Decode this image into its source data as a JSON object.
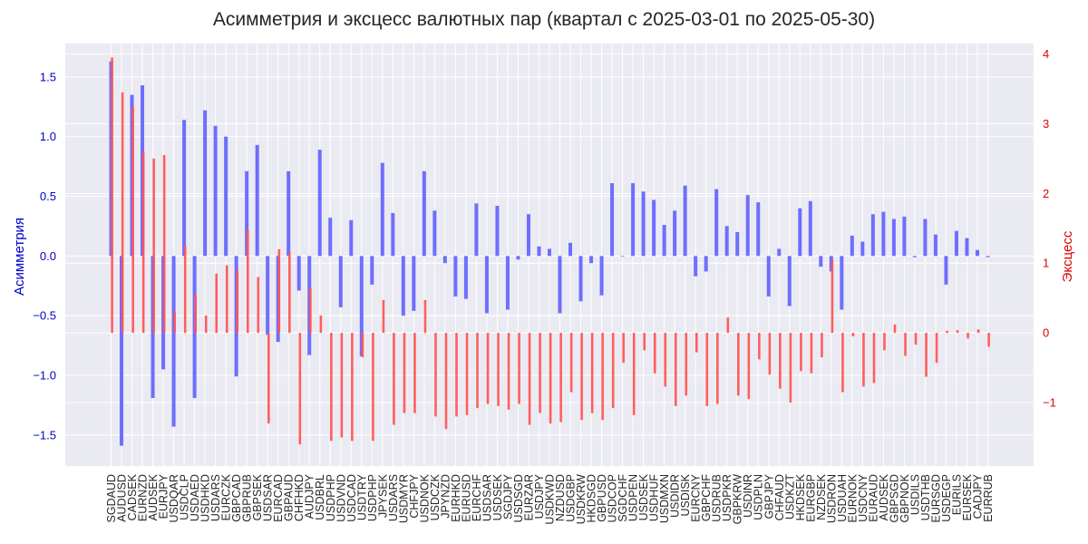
{
  "chart_data": {
    "type": "bar",
    "title": "Асимметрия и эксцесс валютных пар (квартал с 2025-03-01 по 2025-05-30)",
    "ylabel": "Асимметрия",
    "y2label": "Эксцесс",
    "ylim": [
      -1.76,
      1.78
    ],
    "y2lim": [
      -1.91,
      4.15
    ],
    "yticks": [
      -1.5,
      -1.0,
      -0.5,
      0.0,
      0.5,
      1.0,
      1.5
    ],
    "y2ticks": [
      -1,
      0,
      1,
      2,
      3,
      4
    ],
    "grid": true,
    "colors": {
      "skew": "#6666ff",
      "kurt": "#ff5555",
      "grid": "#ffffff",
      "background": "#eaeaf2",
      "left_axis": "#0000cc",
      "right_axis": "#dd0000"
    },
    "categories": [
      "SGDAUD",
      "AUDUSD",
      "CADSEK",
      "EURNZD",
      "AUDSEK",
      "EURJPY",
      "USDQAR",
      "USDCLP",
      "USDAED",
      "USDHKD",
      "USDARS",
      "EURCZK",
      "GBPCAD",
      "GBPRUB",
      "GBPSEK",
      "USDSAR",
      "EURCAD",
      "GBPAUD",
      "CHFHKD",
      "AUDJPY",
      "USDBRL",
      "USDPHP",
      "USDVND",
      "USDCAD",
      "USDTRY",
      "USDPHP",
      "JPYSEK",
      "USDARS",
      "USDMYR",
      "CHFJPY",
      "USDNOK",
      "USDCZK",
      "JPYNZD",
      "EURHKD",
      "EURUSD",
      "EURCHF",
      "USDSAR",
      "USDSEK",
      "SGDJPY",
      "USDSGD",
      "EURZAR",
      "USDJPY",
      "USDKWD",
      "NZDUSD",
      "USDGBP",
      "USDKRW",
      "HKDSGD",
      "GBPUSD",
      "USDCOP",
      "SGDCHF",
      "USDPEN",
      "USDSEK",
      "USDHUF",
      "USDMXN",
      "USDIDR",
      "USDISK",
      "EURCNY",
      "GBPCHF",
      "USDRUB",
      "USDPKR",
      "GBPKRW",
      "USDINR",
      "USDPLN",
      "GBPJPY",
      "CHFAUD",
      "USDKZT",
      "HKDSEK",
      "EURGBP",
      "NZDSEK",
      "USDRON",
      "USDUAH",
      "EURNOK",
      "USDCNY",
      "EURAUD",
      "AUDSEK",
      "GBPSGD",
      "GBPNOK",
      "USDILS",
      "USDTHB",
      "EURSGD",
      "USDEGP",
      "EURILS",
      "EURSEK",
      "CADJPY",
      "EURRUB"
    ],
    "series": [
      {
        "name": "",
        "key": "skew",
        "axis": "left",
        "values": [
          1.63,
          -1.59,
          1.35,
          1.43,
          -1.19,
          -0.95,
          -1.43,
          1.14,
          -1.19,
          1.22,
          1.09,
          1.0,
          -1.01,
          0.71,
          0.93,
          -0.66,
          -0.72,
          0.71,
          -0.29,
          -0.83,
          0.89,
          0.32,
          -0.43,
          0.3,
          -0.84,
          -0.24,
          0.78,
          0.36,
          -0.5,
          -0.46,
          0.71,
          0.38,
          -0.06,
          -0.34,
          -0.36,
          0.44,
          -0.48,
          0.42,
          -0.45,
          -0.03,
          0.35,
          0.08,
          0.06,
          -0.48,
          0.11,
          -0.38,
          -0.06,
          -0.33,
          0.61,
          0.0,
          0.61,
          0.54,
          0.47,
          0.26,
          0.38,
          0.59,
          -0.17,
          -0.13,
          0.56,
          0.25,
          0.2,
          0.51,
          0.45,
          -0.34,
          0.06,
          -0.42,
          0.4,
          0.46,
          -0.09,
          -0.13,
          -0.45,
          0.17,
          0.12,
          0.35,
          0.37,
          0.31,
          0.33,
          -0.01,
          0.31,
          0.18,
          -0.24,
          0.21,
          0.15,
          0.05,
          -0.01
        ]
      },
      {
        "name": "",
        "key": "kurt",
        "axis": "right",
        "values": [
          3.95,
          3.45,
          3.25,
          2.6,
          2.5,
          2.55,
          0.3,
          1.25,
          0.55,
          0.25,
          0.85,
          0.97,
          0.9,
          1.48,
          0.8,
          -1.3,
          1.2,
          1.15,
          -1.6,
          0.65,
          0.25,
          -1.55,
          -1.5,
          -1.55,
          -0.35,
          -1.55,
          0.47,
          -1.32,
          -1.15,
          -1.15,
          0.47,
          -1.2,
          -1.38,
          -1.2,
          -1.18,
          -1.08,
          -1.02,
          -1.05,
          -1.1,
          -1.02,
          -1.32,
          -1.15,
          -1.3,
          -1.28,
          -0.85,
          -1.25,
          -1.15,
          -1.25,
          -1.08,
          -0.43,
          -1.18,
          -0.25,
          -0.58,
          -0.77,
          -1.05,
          -0.9,
          -0.28,
          -1.05,
          -1.02,
          0.22,
          -0.9,
          -0.95,
          -0.38,
          -0.6,
          -0.8,
          -1.0,
          -0.55,
          -0.58,
          -0.35,
          1.05,
          -0.85,
          -0.05,
          -0.77,
          -0.72,
          -0.25,
          0.12,
          -0.33,
          -0.17,
          -0.63,
          -0.43,
          0.03,
          0.04,
          -0.08,
          0.05,
          -0.2
        ]
      }
    ]
  }
}
